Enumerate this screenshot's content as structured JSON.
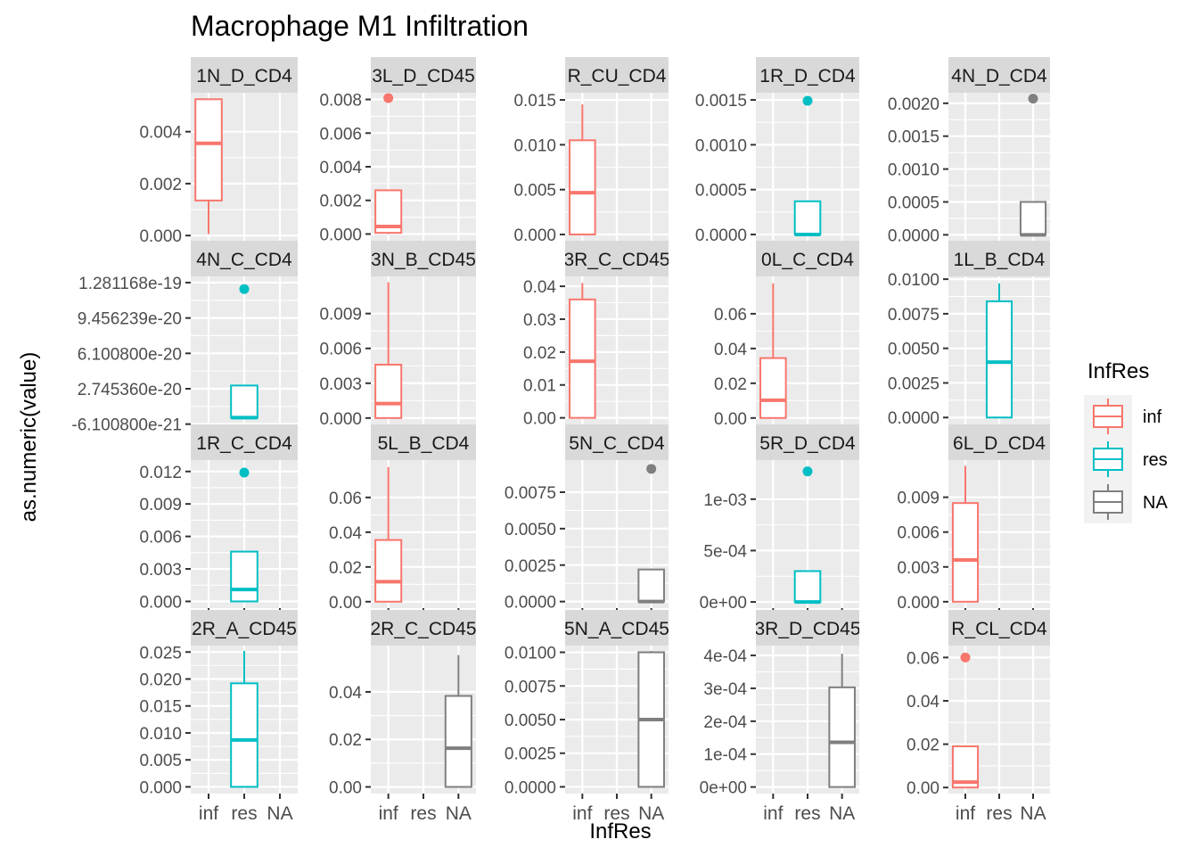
{
  "chart_data": {
    "type": "boxplot",
    "title": "Macrophage M1 Infiltration",
    "xlabel": "InfRes",
    "ylabel": "as.numeric(value)",
    "categories": [
      "inf",
      "res",
      "NA"
    ],
    "legend": {
      "title": "InfRes",
      "position": "right",
      "entries": [
        {
          "label": "inf",
          "color": "#F8766D"
        },
        {
          "label": "res",
          "color": "#00BFC4"
        },
        {
          "label": "NA",
          "color": "#7F7F7F"
        }
      ]
    },
    "grid": true,
    "facets": [
      {
        "label": "1N_D_CD4",
        "ylim": [
          -0.0002,
          0.0055
        ],
        "yticks": [
          0,
          0.002,
          0.004
        ],
        "yticklabels": [
          "0.000",
          "0.002",
          "0.004"
        ],
        "boxes": [
          {
            "group": "inf",
            "min": 6e-05,
            "q1": 0.00135,
            "median": 0.00355,
            "q3": 0.00525,
            "max": 0.00525,
            "outliers": []
          }
        ]
      },
      {
        "label": "3L_D_CD45",
        "ylim": [
          -0.0004,
          0.0084
        ],
        "yticks": [
          0,
          0.002,
          0.004,
          0.006,
          0.008
        ],
        "yticklabels": [
          "0.000",
          "0.002",
          "0.004",
          "0.006",
          "0.008"
        ],
        "boxes": [
          {
            "group": "inf",
            "min": 0,
            "q1": 7e-05,
            "median": 0.00045,
            "q3": 0.0026,
            "max": 0.0026,
            "outliers": [
              0.00808
            ]
          }
        ]
      },
      {
        "label": "R_CU_CD4",
        "ylim": [
          -0.0007,
          0.0158
        ],
        "yticks": [
          0,
          0.005,
          0.01,
          0.015
        ],
        "yticklabels": [
          "0.000",
          "0.005",
          "0.010",
          "0.015"
        ],
        "boxes": [
          {
            "group": "inf",
            "min": 0,
            "q1": 0,
            "median": 0.00465,
            "q3": 0.0105,
            "max": 0.0145,
            "outliers": []
          }
        ]
      },
      {
        "label": "1R_D_CD4",
        "ylim": [
          -7e-05,
          0.00158
        ],
        "yticks": [
          0,
          0.0005,
          0.001,
          0.0015
        ],
        "yticklabels": [
          "0.0000",
          "0.0005",
          "0.0010",
          "0.0015"
        ],
        "boxes": [
          {
            "group": "res",
            "min": 0,
            "q1": 0,
            "median": 0,
            "q3": 0.00037,
            "max": 0.00037,
            "outliers": [
              0.00149
            ]
          }
        ]
      },
      {
        "label": "4N_D_CD4",
        "ylim": [
          -9e-05,
          0.00216
        ],
        "yticks": [
          0,
          0.0005,
          0.001,
          0.0015,
          0.002
        ],
        "yticklabels": [
          "0.0000",
          "0.0005",
          "0.0010",
          "0.0015",
          "0.0020"
        ],
        "boxes": [
          {
            "group": "NA",
            "min": 0,
            "q1": 0,
            "median": 0,
            "q3": 0.0005,
            "max": 0.0005,
            "outliers": [
              0.00207
            ]
          }
        ]
      },
      {
        "label": "4N_C_CD4",
        "ylim": [
          -6.4e-21,
          1.34e-19
        ],
        "yticks": [
          -6.1008e-21,
          2.74536e-20,
          6.1008e-20,
          9.456239e-20,
          1.281168e-19
        ],
        "yticklabels": [
          "-6.100800e-21",
          "2.745360e-20",
          "6.100800e-20",
          "9.456239e-20",
          "1.281168e-19"
        ],
        "boxes": [
          {
            "group": "res",
            "min": 0,
            "q1": 0,
            "median": 0,
            "q3": 3.05e-20,
            "max": 3.05e-20,
            "outliers": [
              1.22e-19
            ]
          }
        ]
      },
      {
        "label": "3N_B_CD45",
        "ylim": [
          -0.00055,
          0.0122
        ],
        "yticks": [
          0,
          0.003,
          0.006,
          0.009
        ],
        "yticklabels": [
          "0.000",
          "0.003",
          "0.006",
          "0.009"
        ],
        "boxes": [
          {
            "group": "inf",
            "min": 0,
            "q1": 0,
            "median": 0.00125,
            "q3": 0.0046,
            "max": 0.0117,
            "outliers": []
          }
        ]
      },
      {
        "label": "3R_C_CD45",
        "ylim": [
          -0.002,
          0.043
        ],
        "yticks": [
          0,
          0.01,
          0.02,
          0.03,
          0.04
        ],
        "yticklabels": [
          "0.00",
          "0.01",
          "0.02",
          "0.03",
          "0.04"
        ],
        "boxes": [
          {
            "group": "inf",
            "min": 0,
            "q1": 0,
            "median": 0.0172,
            "q3": 0.036,
            "max": 0.041,
            "outliers": []
          }
        ]
      },
      {
        "label": "0L_C_CD4",
        "ylim": [
          -0.0037,
          0.0815
        ],
        "yticks": [
          0,
          0.02,
          0.04,
          0.06
        ],
        "yticklabels": [
          "0.00",
          "0.02",
          "0.04",
          "0.06"
        ],
        "boxes": [
          {
            "group": "inf",
            "min": 0,
            "q1": 0,
            "median": 0.0102,
            "q3": 0.0345,
            "max": 0.0775,
            "outliers": []
          }
        ]
      },
      {
        "label": "1L_B_CD4",
        "ylim": [
          -0.0005,
          0.0102
        ],
        "yticks": [
          0,
          0.0025,
          0.005,
          0.0075,
          0.01
        ],
        "yticklabels": [
          "0.0000",
          "0.0025",
          "0.0050",
          "0.0075",
          "0.0100"
        ],
        "boxes": [
          {
            "group": "res",
            "min": 0,
            "q1": 0,
            "median": 0.004,
            "q3": 0.0084,
            "max": 0.0097,
            "outliers": []
          }
        ]
      },
      {
        "label": "1R_C_CD4",
        "ylim": [
          -0.00062,
          0.01305
        ],
        "yticks": [
          0,
          0.003,
          0.006,
          0.009,
          0.012
        ],
        "yticklabels": [
          "0.000",
          "0.003",
          "0.006",
          "0.009",
          "0.012"
        ],
        "boxes": [
          {
            "group": "res",
            "min": 0,
            "q1": 0,
            "median": 0.0011,
            "q3": 0.0046,
            "max": 0.0046,
            "outliers": [
              0.0119
            ]
          }
        ]
      },
      {
        "label": "5L_B_CD4",
        "ylim": [
          -0.0037,
          0.0815
        ],
        "yticks": [
          0,
          0.02,
          0.04,
          0.06
        ],
        "yticklabels": [
          "0.00",
          "0.02",
          "0.04",
          "0.06"
        ],
        "boxes": [
          {
            "group": "inf",
            "min": 0,
            "q1": 0,
            "median": 0.0115,
            "q3": 0.0355,
            "max": 0.0775,
            "outliers": []
          }
        ]
      },
      {
        "label": "5N_C_CD4",
        "ylim": [
          -0.00045,
          0.0097
        ],
        "yticks": [
          0,
          0.0025,
          0.005,
          0.0075
        ],
        "yticklabels": [
          "0.0000",
          "0.0025",
          "0.0050",
          "0.0075"
        ],
        "boxes": [
          {
            "group": "NA",
            "min": 0,
            "q1": 0,
            "median": 0,
            "q3": 0.0022,
            "max": 0.0022,
            "outliers": [
              0.0091
            ]
          }
        ]
      },
      {
        "label": "5R_D_CD4",
        "ylim": [
          -6e-05,
          0.00138
        ],
        "yticks": [
          0,
          0.0005,
          0.001
        ],
        "yticklabels": [
          "0e+00",
          "5e-04",
          "1e-03"
        ],
        "boxes": [
          {
            "group": "res",
            "min": 0,
            "q1": 0,
            "median": 0,
            "q3": 0.0003,
            "max": 0.0003,
            "outliers": [
              0.00127
            ]
          }
        ]
      },
      {
        "label": "6L_D_CD4",
        "ylim": [
          -0.00055,
          0.0122
        ],
        "yticks": [
          0,
          0.003,
          0.006,
          0.009
        ],
        "yticklabels": [
          "0.000",
          "0.003",
          "0.006",
          "0.009"
        ],
        "boxes": [
          {
            "group": "inf",
            "min": 0,
            "q1": 0,
            "median": 0.0036,
            "q3": 0.0085,
            "max": 0.0117,
            "outliers": []
          }
        ]
      },
      {
        "label": "2R_A_CD45",
        "ylim": [
          -0.00125,
          0.0262
        ],
        "yticks": [
          0,
          0.005,
          0.01,
          0.015,
          0.02,
          0.025
        ],
        "yticklabels": [
          "0.000",
          "0.005",
          "0.010",
          "0.015",
          "0.020",
          "0.025"
        ],
        "boxes": [
          {
            "group": "res",
            "min": 0,
            "q1": 0,
            "median": 0.0087,
            "q3": 0.0192,
            "max": 0.0252,
            "outliers": []
          }
        ]
      },
      {
        "label": "2R_C_CD45",
        "ylim": [
          -0.0028,
          0.0595
        ],
        "yticks": [
          0,
          0.02,
          0.04
        ],
        "yticklabels": [
          "0.00",
          "0.02",
          "0.04"
        ],
        "boxes": [
          {
            "group": "NA",
            "min": 0,
            "q1": 0,
            "median": 0.0163,
            "q3": 0.0383,
            "max": 0.0555,
            "outliers": []
          }
        ]
      },
      {
        "label": "5N_A_CD45",
        "ylim": [
          -0.0005,
          0.0105
        ],
        "yticks": [
          0,
          0.0025,
          0.005,
          0.0075,
          0.01
        ],
        "yticklabels": [
          "0.0000",
          "0.0025",
          "0.0050",
          "0.0075",
          "0.0100"
        ],
        "boxes": [
          {
            "group": "NA",
            "min": 0,
            "q1": 0,
            "median": 0.005,
            "q3": 0.01,
            "max": 0.0101,
            "outliers": []
          }
        ]
      },
      {
        "label": "3R_D_CD45",
        "ylim": [
          -2e-05,
          0.00043
        ],
        "yticks": [
          0,
          0.0001,
          0.0002,
          0.0003,
          0.0004
        ],
        "yticklabels": [
          "0e+00",
          "1e-04",
          "2e-04",
          "3e-04",
          "4e-04"
        ],
        "boxes": [
          {
            "group": "NA",
            "min": 0,
            "q1": 0,
            "median": 0.000136,
            "q3": 0.000303,
            "max": 0.000405,
            "outliers": []
          }
        ]
      },
      {
        "label": "R_CL_CD4",
        "ylim": [
          -0.0028,
          0.0655
        ],
        "yticks": [
          0,
          0.02,
          0.04,
          0.06
        ],
        "yticklabels": [
          "0.00",
          "0.02",
          "0.04",
          "0.06"
        ],
        "boxes": [
          {
            "group": "inf",
            "min": 0,
            "q1": 0,
            "median": 0.0025,
            "q3": 0.019,
            "max": 0.019,
            "outliers": [
              0.06
            ]
          }
        ]
      }
    ]
  }
}
